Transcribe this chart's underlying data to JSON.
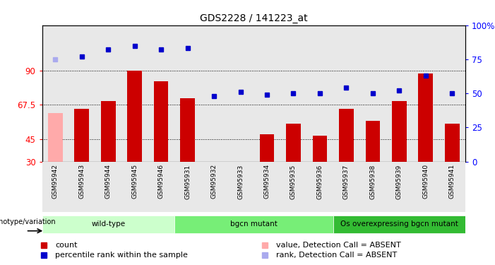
{
  "title": "GDS2228 / 141223_at",
  "samples": [
    "GSM95942",
    "GSM95943",
    "GSM95944",
    "GSM95945",
    "GSM95946",
    "GSM95931",
    "GSM95932",
    "GSM95933",
    "GSM95934",
    "GSM95935",
    "GSM95936",
    "GSM95937",
    "GSM95938",
    "GSM95939",
    "GSM95940",
    "GSM95941"
  ],
  "bar_values": [
    62,
    65,
    70,
    90,
    83,
    72,
    20,
    30,
    48,
    55,
    47,
    65,
    57,
    70,
    88,
    55
  ],
  "bar_absent": [
    true,
    false,
    false,
    false,
    false,
    false,
    false,
    false,
    false,
    false,
    false,
    false,
    false,
    false,
    false,
    false
  ],
  "rank_values": [
    75,
    77,
    82,
    85,
    82,
    83,
    48,
    51,
    49,
    50,
    50,
    54,
    50,
    52,
    63,
    50
  ],
  "rank_absent": [
    true,
    false,
    false,
    false,
    false,
    false,
    false,
    false,
    false,
    false,
    false,
    false,
    false,
    false,
    false,
    false
  ],
  "groups": [
    {
      "label": "wild-type",
      "start": 0,
      "end": 5,
      "color": "#ccffcc"
    },
    {
      "label": "bgcn mutant",
      "start": 5,
      "end": 11,
      "color": "#66ee66"
    },
    {
      "label": "Os overexpressing bgcn mutant",
      "start": 11,
      "end": 16,
      "color": "#33cc33"
    }
  ],
  "ylim_left": [
    30,
    120
  ],
  "yticks_left": [
    30,
    45,
    67.5,
    90
  ],
  "ylim_right": [
    0,
    100
  ],
  "yticks_right": [
    0,
    25,
    50,
    75,
    100
  ],
  "bar_color": "#cc0000",
  "bar_absent_color": "#ffaaaa",
  "rank_color": "#0000cc",
  "rank_absent_color": "#aaaaee",
  "legend": [
    {
      "label": "count",
      "color": "#cc0000"
    },
    {
      "label": "percentile rank within the sample",
      "color": "#0000cc"
    },
    {
      "label": "value, Detection Call = ABSENT",
      "color": "#ffaaaa"
    },
    {
      "label": "rank, Detection Call = ABSENT",
      "color": "#aaaaee"
    }
  ]
}
